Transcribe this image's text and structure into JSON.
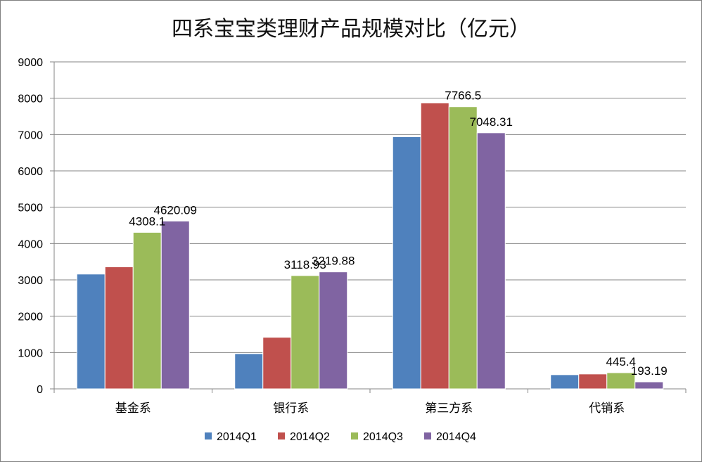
{
  "chart_data": {
    "type": "bar",
    "title": "四系宝宝类理财产品规模对比（亿元）",
    "categories": [
      "基金系",
      "银行系",
      "第三方系",
      "代销系"
    ],
    "series": [
      {
        "name": "2014Q1",
        "color": "#4f81bd",
        "values": [
          3160,
          970,
          6940,
          390
        ]
      },
      {
        "name": "2014Q2",
        "color": "#c0504d",
        "values": [
          3360,
          1420,
          7870,
          410
        ]
      },
      {
        "name": "2014Q3",
        "color": "#9bbb59",
        "values": [
          4308.1,
          3118.93,
          7766.5,
          445.4
        ]
      },
      {
        "name": "2014Q4",
        "color": "#8064a2",
        "values": [
          4620.09,
          3219.88,
          7048.31,
          193.19
        ]
      }
    ],
    "data_labels": [
      {
        "category": 0,
        "series": 2,
        "text": "4308.1"
      },
      {
        "category": 0,
        "series": 3,
        "text": "4620.09"
      },
      {
        "category": 1,
        "series": 2,
        "text": "3118.93"
      },
      {
        "category": 1,
        "series": 3,
        "text": "3219.88"
      },
      {
        "category": 2,
        "series": 2,
        "text": "7766.5"
      },
      {
        "category": 2,
        "series": 3,
        "text": "7048.31"
      },
      {
        "category": 3,
        "series": 2,
        "text": "445.4"
      },
      {
        "category": 3,
        "series": 3,
        "text": "193.19"
      }
    ],
    "y_ticks": [
      0,
      1000,
      2000,
      3000,
      4000,
      5000,
      6000,
      7000,
      8000,
      9000
    ],
    "ylim": [
      0,
      9000
    ],
    "grid": true,
    "legend_position": "bottom"
  }
}
